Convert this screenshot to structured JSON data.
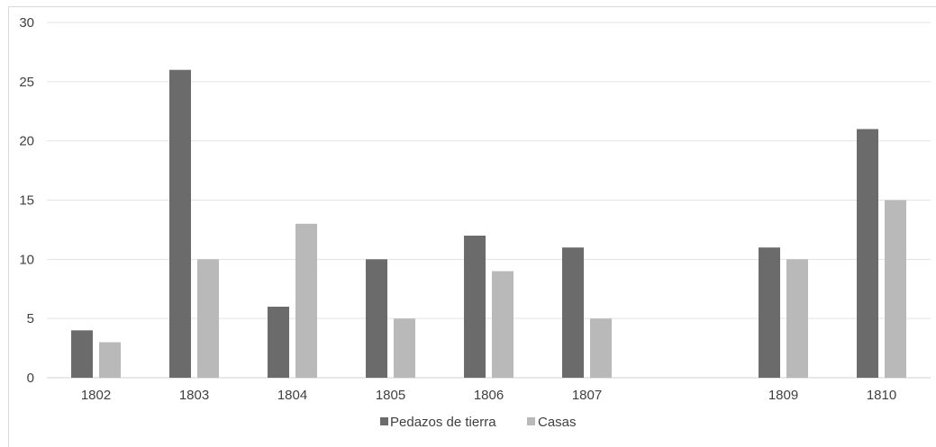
{
  "chart_data": {
    "type": "bar",
    "categories": [
      "1802",
      "1803",
      "1804",
      "1805",
      "1806",
      "1807",
      "",
      "1809",
      "1810"
    ],
    "series": [
      {
        "name": "Pedazos de tierra",
        "color": "#6b6b6b",
        "values": [
          4,
          26,
          6,
          10,
          12,
          11,
          null,
          11,
          21
        ]
      },
      {
        "name": "Casas",
        "color": "#b9b9b9",
        "values": [
          3,
          10,
          13,
          5,
          9,
          5,
          null,
          10,
          15
        ]
      }
    ],
    "title": "",
    "xlabel": "",
    "ylabel": "",
    "ylim": [
      0,
      30
    ],
    "yticks": [
      0,
      5,
      10,
      15,
      20,
      25,
      30
    ],
    "grid": true,
    "legend_position": "bottom-center"
  }
}
